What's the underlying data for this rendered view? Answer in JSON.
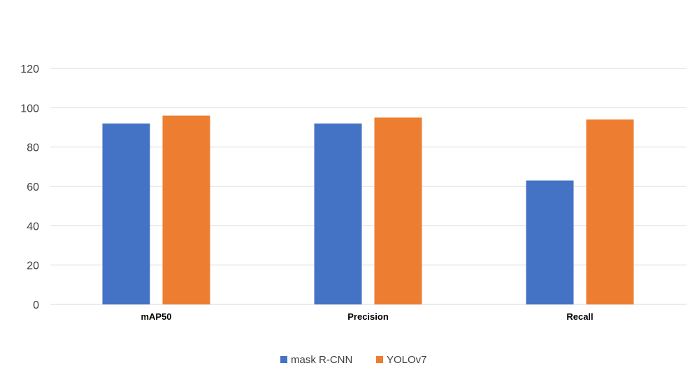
{
  "chart_data": {
    "type": "bar",
    "categories": [
      "mAP50",
      "Precision",
      "Recall"
    ],
    "series": [
      {
        "name": "mask R-CNN",
        "values": [
          92,
          92,
          63
        ],
        "color": "#4472c4"
      },
      {
        "name": "YOLOv7",
        "values": [
          96,
          95,
          94
        ],
        "color": "#ed7d31"
      }
    ],
    "title": "",
    "xlabel": "",
    "ylabel": "",
    "ylim": [
      0,
      120
    ],
    "yticks": [
      0,
      20,
      40,
      60,
      80,
      100,
      120
    ],
    "grid": true,
    "legend": "bottom-center"
  }
}
